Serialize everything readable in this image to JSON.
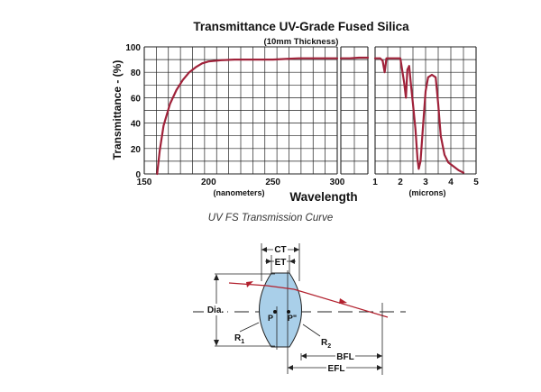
{
  "chart_data": {
    "type": "line",
    "title": "Transmittance UV-Grade Fused Silica",
    "subtitle": "(10mm Thickness)",
    "ylabel": "Transmittance - (%)",
    "xlabel": "Wavelength",
    "ylim": [
      0,
      100
    ],
    "yticks": [
      "0",
      "20",
      "40",
      "60",
      "80",
      "100"
    ],
    "grid": true,
    "line_color": "#a0223a",
    "panels": [
      {
        "unit_label": "(nanometers)",
        "xlim": [
          150,
          300
        ],
        "xticks": [
          "150",
          "200",
          "250",
          "300"
        ],
        "x": [
          160,
          162,
          165,
          170,
          175,
          180,
          185,
          190,
          195,
          200,
          210,
          220,
          230,
          240,
          250,
          260,
          270,
          280,
          290,
          300
        ],
        "y": [
          0,
          18,
          38,
          55,
          66,
          74,
          80,
          84,
          87,
          88.5,
          89.5,
          90,
          90,
          90,
          90,
          90.5,
          91,
          91,
          91,
          91
        ]
      },
      {
        "unit_label": "",
        "xlim": [
          300,
          330
        ],
        "xticks": [],
        "x": [
          300,
          310,
          320,
          330
        ],
        "y": [
          91,
          91,
          91.5,
          91.5
        ]
      },
      {
        "unit_label": "(microns)",
        "xlim": [
          1,
          5
        ],
        "xticks": [
          "1",
          "2",
          "3",
          "4",
          "5"
        ],
        "x": [
          1.0,
          1.2,
          1.3,
          1.38,
          1.45,
          1.6,
          2.0,
          2.15,
          2.22,
          2.28,
          2.35,
          2.42,
          2.5,
          2.6,
          2.68,
          2.73,
          2.8,
          2.9,
          3.0,
          3.1,
          3.25,
          3.4,
          3.5,
          3.6,
          3.75,
          3.9,
          4.1,
          4.3,
          4.5
        ],
        "y": [
          91,
          91,
          89,
          80,
          91,
          91,
          91,
          72,
          60,
          82,
          85,
          70,
          55,
          35,
          12,
          4,
          10,
          38,
          65,
          76,
          78,
          76,
          55,
          30,
          15,
          9,
          6,
          3,
          1
        ]
      }
    ]
  },
  "caption": "UV FS Transmission Curve",
  "diagram": {
    "labels": {
      "ct": "CT",
      "et": "ET",
      "dia": "Dia.",
      "p": "P",
      "p2": "P\"",
      "r1": "R",
      "r1_sub": "1",
      "r2": "R",
      "r2_sub": "2",
      "bfl": "BFL",
      "efl": "EFL"
    },
    "lens_fill": "#a9cfe9",
    "ray_color": "#b2212e"
  }
}
